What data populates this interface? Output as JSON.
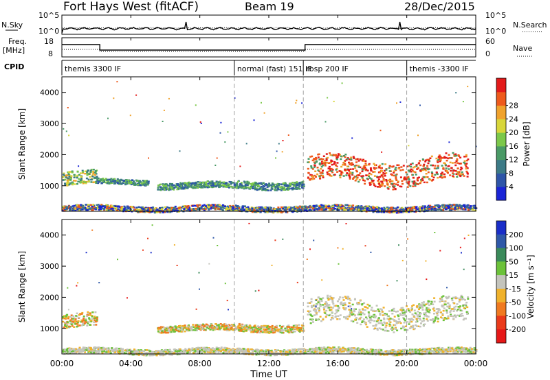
{
  "header": {
    "title": "Fort Hays West (fitACF)",
    "beam": "Beam 19",
    "date": "28/Dec/2015"
  },
  "noise_panel": {
    "left_label": "N.Sky",
    "left_ticks": [
      "10^5",
      "10^0"
    ],
    "right_label": "N.Search",
    "right_ticks": [
      "10^5",
      "10^0"
    ]
  },
  "freq_panel": {
    "left_label_line1": "Freq.",
    "left_label_line2": "[MHz]",
    "left_ticks": [
      "18",
      "8"
    ],
    "right_label": "Nave",
    "right_ticks": [
      "60",
      "0"
    ]
  },
  "cpid": {
    "label": "CPID",
    "segments": [
      {
        "text": "themis 3300 IF",
        "start_hour": 0.0
      },
      {
        "text": "normal (fast) 151 IF",
        "start_hour": 10.0
      },
      {
        "text": "rbsp 200 IF",
        "start_hour": 14.0
      },
      {
        "text": "themis -3300 IF",
        "start_hour": 20.0
      }
    ]
  },
  "x_axis": {
    "label": "Time UT",
    "ticks": [
      "00:00",
      "04:00",
      "08:00",
      "12:00",
      "16:00",
      "20:00",
      "00:00"
    ],
    "range_hours": [
      0,
      24
    ],
    "mode_change_hours": [
      10,
      14,
      20
    ]
  },
  "chart_data": [
    {
      "type": "heatmap",
      "name": "power",
      "ylabel": "Slant Range [km]",
      "yticks": [
        "1000",
        "2000",
        "3000",
        "4000"
      ],
      "ylim": [
        180,
        4500
      ],
      "colorbar_label": "Power [dB]",
      "colorbar_ticks": [
        "4",
        "8",
        "12",
        "16",
        "20",
        "24",
        "28"
      ],
      "colorbar_colors": [
        "#1a24d6",
        "#2e55a8",
        "#3c7a86",
        "#4a9a66",
        "#7cc84a",
        "#d8d63a",
        "#f0a22c",
        "#ee5a1c",
        "#e31a1a"
      ],
      "echo_bands": [
        {
          "t_start": 0.0,
          "t_end": 2.0,
          "range_low": 950,
          "range_high": 1500,
          "level": "moderate"
        },
        {
          "t_start": 2.0,
          "t_end": 5.0,
          "range_low": 1050,
          "range_high": 1250,
          "level": "weak"
        },
        {
          "t_start": 5.5,
          "t_end": 10.0,
          "range_low": 900,
          "range_high": 1150,
          "level": "weak"
        },
        {
          "t_start": 10.0,
          "t_end": 14.0,
          "range_low": 900,
          "range_high": 1200,
          "level": "weak"
        },
        {
          "t_start": 14.2,
          "t_end": 23.5,
          "range_low": 1000,
          "range_high": 2000,
          "level": "strong"
        },
        {
          "t_start": 0.0,
          "t_end": 24.0,
          "range_low": 180,
          "range_high": 400,
          "level": "ground scatter"
        }
      ]
    },
    {
      "type": "heatmap",
      "name": "velocity",
      "ylabel": "Slant Range [km]",
      "yticks": [
        "1000",
        "2000",
        "3000",
        "4000"
      ],
      "ylim": [
        180,
        4500
      ],
      "colorbar_label": "Velocity [m s⁻¹]",
      "colorbar_ticks": [
        "200",
        "100",
        "50",
        "15",
        "-15",
        "-50",
        "-100",
        "-200"
      ],
      "colorbar_colors": [
        "#1a2ec8",
        "#2f58a8",
        "#3a8a5a",
        "#6cc23a",
        "#c4c4bc",
        "#f0b22c",
        "#f07a20",
        "#ea3a1a",
        "#e61818"
      ],
      "echo_bands": [
        {
          "t_start": 0.0,
          "t_end": 2.0,
          "range_low": 950,
          "range_high": 1500,
          "level": "mixed"
        },
        {
          "t_start": 5.5,
          "t_end": 10.0,
          "range_low": 900,
          "range_high": 1150,
          "level": "negative"
        },
        {
          "t_start": 10.0,
          "t_end": 14.0,
          "range_low": 900,
          "range_high": 1200,
          "level": "negative"
        },
        {
          "t_start": 14.2,
          "t_end": 23.5,
          "range_low": 1000,
          "range_high": 2000,
          "level": "near zero"
        },
        {
          "t_start": 0.0,
          "t_end": 24.0,
          "range_low": 180,
          "range_high": 400,
          "level": "near zero"
        }
      ]
    }
  ]
}
